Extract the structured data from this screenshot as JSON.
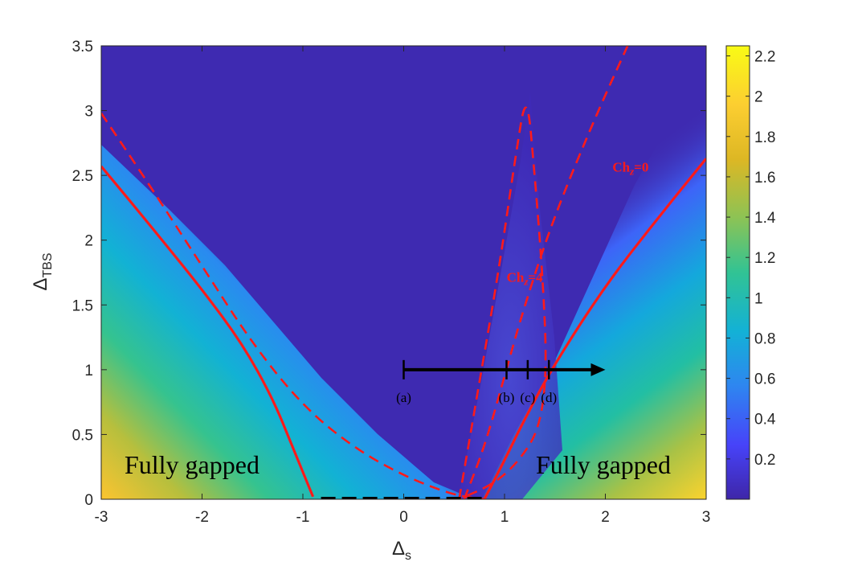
{
  "chart_data": {
    "type": "heatmap",
    "xlabel": "Δ",
    "xlabel_sub": "s",
    "ylabel": "Δ",
    "ylabel_sub": "TBS",
    "xlim": [
      -3,
      3
    ],
    "ylim": [
      0,
      3.5
    ],
    "x_ticks": [
      "-3",
      "-2",
      "-1",
      "0",
      "1",
      "2",
      "3"
    ],
    "y_ticks": [
      "0",
      "0.5",
      "1",
      "1.5",
      "2",
      "2.5",
      "3",
      "3.5"
    ],
    "colorbar": {
      "range": [
        0,
        2.25
      ],
      "ticks": [
        "0.2",
        "0.4",
        "0.6",
        "0.8",
        "1",
        "1.2",
        "1.4",
        "1.6",
        "1.8",
        "2",
        "2.2"
      ],
      "colormap": "parula",
      "colors": [
        "#3e26a8",
        "#4743f9",
        "#2e86f0",
        "#13b1d6",
        "#31c394",
        "#8cc355",
        "#ddb724",
        "#fcce31",
        "#f9fb15"
      ]
    },
    "region_labels": [
      {
        "text": "Fully gapped",
        "x": -2.1,
        "y": 0.2
      },
      {
        "text": "Fully gapped",
        "x": 1.98,
        "y": 0.2
      }
    ],
    "curve_labels": [
      {
        "text": "Ch",
        "sub": "z",
        "suffix": "=0",
        "x": 2.25,
        "y": 2.53,
        "color": "#ff1a1a"
      },
      {
        "text": "Ch",
        "sub": "z",
        "suffix": "=4",
        "x": 1.2,
        "y": 1.68,
        "color": "#ff1a1a"
      }
    ],
    "curves": [
      {
        "name": "solid-left",
        "style": "solid",
        "color": "#ff1a1a",
        "points": [
          [
            -3,
            2.57
          ],
          [
            -2.5,
            2.1
          ],
          [
            -2,
            1.62
          ],
          [
            -1.6,
            1.2
          ],
          [
            -1.3,
            0.78
          ],
          [
            -1.1,
            0.4
          ],
          [
            -0.9,
            0.02
          ]
        ]
      },
      {
        "name": "solid-right",
        "style": "solid",
        "color": "#ff1a1a",
        "points": [
          [
            0.8,
            0.0
          ],
          [
            1.0,
            0.3
          ],
          [
            1.2,
            0.62
          ],
          [
            1.5,
            1.05
          ],
          [
            2.0,
            1.65
          ],
          [
            2.5,
            2.15
          ],
          [
            3,
            2.63
          ]
        ]
      },
      {
        "name": "dashed-outer-left",
        "style": "dashed",
        "color": "#ff1a1a",
        "points": [
          [
            -3,
            2.98
          ],
          [
            -2.5,
            2.4
          ],
          [
            -2,
            1.8
          ],
          [
            -1.5,
            1.2
          ],
          [
            -1,
            0.72
          ],
          [
            -0.5,
            0.4
          ],
          [
            0,
            0.18
          ],
          [
            0.5,
            0.03
          ],
          [
            0.8,
            0.0
          ]
        ]
      },
      {
        "name": "dashed-outer-right",
        "style": "dashed",
        "color": "#ff1a1a",
        "points": [
          [
            0.6,
            0.0
          ],
          [
            0.8,
            0.4
          ],
          [
            1.0,
            0.95
          ],
          [
            1.2,
            1.5
          ],
          [
            1.5,
            2.2
          ],
          [
            1.9,
            2.95
          ],
          [
            2.25,
            3.55
          ]
        ]
      },
      {
        "name": "dashed-lens",
        "style": "dashed",
        "color": "#ff1a1a",
        "points": [
          [
            0.55,
            0.0
          ],
          [
            0.75,
            0.9
          ],
          [
            0.95,
            1.8
          ],
          [
            1.1,
            2.6
          ],
          [
            1.22,
            3.18
          ],
          [
            1.3,
            2.5
          ],
          [
            1.38,
            1.7
          ],
          [
            1.42,
            1.0
          ],
          [
            1.35,
            0.55
          ],
          [
            1.15,
            0.3
          ],
          [
            0.9,
            0.12
          ],
          [
            0.55,
            0.0
          ]
        ]
      },
      {
        "name": "dashed-bottom",
        "style": "dashed-thick",
        "color": "#000000",
        "points": [
          [
            -0.82,
            0.0
          ],
          [
            0.8,
            0.0
          ]
        ]
      }
    ],
    "path_arrow": {
      "from": [
        0.0,
        1.0
      ],
      "to": [
        2.0,
        1.0
      ],
      "color": "#000000"
    },
    "points": [
      {
        "label": "(a)",
        "x": 0.0,
        "y": 1.0
      },
      {
        "label": "(b)",
        "x": 1.02,
        "y": 1.0
      },
      {
        "label": "(c)",
        "x": 1.23,
        "y": 1.0
      },
      {
        "label": "(d)",
        "x": 1.44,
        "y": 1.0
      }
    ]
  }
}
